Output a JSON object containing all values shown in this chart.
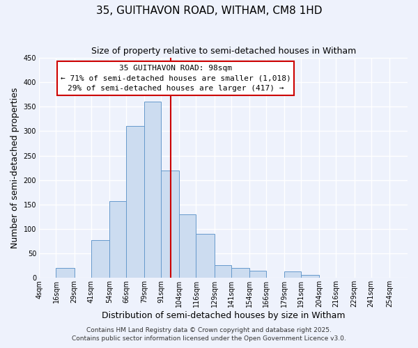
{
  "title": "35, GUITHAVON ROAD, WITHAM, CM8 1HD",
  "subtitle": "Size of property relative to semi-detached houses in Witham",
  "xlabel": "Distribution of semi-detached houses by size in Witham",
  "ylabel": "Number of semi-detached properties",
  "bin_labels": [
    "4sqm",
    "16sqm",
    "29sqm",
    "41sqm",
    "54sqm",
    "66sqm",
    "79sqm",
    "91sqm",
    "104sqm",
    "116sqm",
    "129sqm",
    "141sqm",
    "154sqm",
    "166sqm",
    "179sqm",
    "191sqm",
    "204sqm",
    "216sqm",
    "229sqm",
    "241sqm",
    "254sqm"
  ],
  "bin_edges": [
    4,
    16,
    29,
    41,
    54,
    66,
    79,
    91,
    104,
    116,
    129,
    141,
    154,
    166,
    179,
    191,
    204,
    216,
    229,
    241,
    254,
    267
  ],
  "bar_heights": [
    0,
    20,
    0,
    77,
    157,
    311,
    360,
    220,
    130,
    90,
    26,
    21,
    14,
    0,
    13,
    6,
    0,
    0,
    0,
    0,
    0
  ],
  "bar_color": "#ccdcf0",
  "bar_edge_color": "#6699cc",
  "vline_x": 98,
  "vline_color": "#cc0000",
  "ylim": [
    0,
    450
  ],
  "yticks": [
    0,
    50,
    100,
    150,
    200,
    250,
    300,
    350,
    400,
    450
  ],
  "annotation_title": "35 GUITHAVON ROAD: 98sqm",
  "annotation_line1": "← 71% of semi-detached houses are smaller (1,018)",
  "annotation_line2": "29% of semi-detached houses are larger (417) →",
  "footer1": "Contains HM Land Registry data © Crown copyright and database right 2025.",
  "footer2": "Contains public sector information licensed under the Open Government Licence v3.0.",
  "background_color": "#eef2fc",
  "plot_bg_color": "#eef2fc",
  "grid_color": "#ffffff",
  "title_fontsize": 11,
  "subtitle_fontsize": 9,
  "axis_label_fontsize": 9,
  "tick_fontsize": 7,
  "annotation_fontsize": 8,
  "footer_fontsize": 6.5
}
